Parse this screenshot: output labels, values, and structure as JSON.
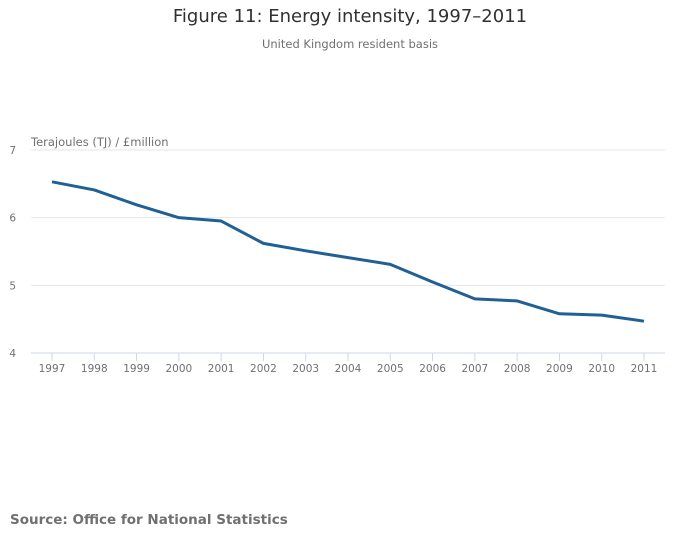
{
  "chart_data": {
    "type": "line",
    "title": "Figure 11: Energy intensity, 1997–2011",
    "subtitle": "United Kingdom resident basis",
    "xlabel": "",
    "ylabel": "Terajoules (TJ) / £million",
    "x": [
      "1997",
      "1998",
      "1999",
      "2000",
      "2001",
      "2002",
      "2003",
      "2004",
      "2005",
      "2006",
      "2007",
      "2008",
      "2009",
      "2010",
      "2011"
    ],
    "series": [
      {
        "name": "Energy intensity",
        "color": "#206095",
        "values": [
          6.53,
          6.41,
          6.19,
          6.0,
          5.95,
          5.62,
          5.51,
          5.41,
          5.31,
          5.05,
          4.8,
          4.77,
          4.58,
          4.56,
          4.47
        ]
      }
    ],
    "ylim": [
      4,
      7
    ],
    "yticks": [
      4,
      5,
      6,
      7
    ],
    "grid": true,
    "legend": "none"
  },
  "footer": {
    "source": "Source: Office for National Statistics"
  }
}
